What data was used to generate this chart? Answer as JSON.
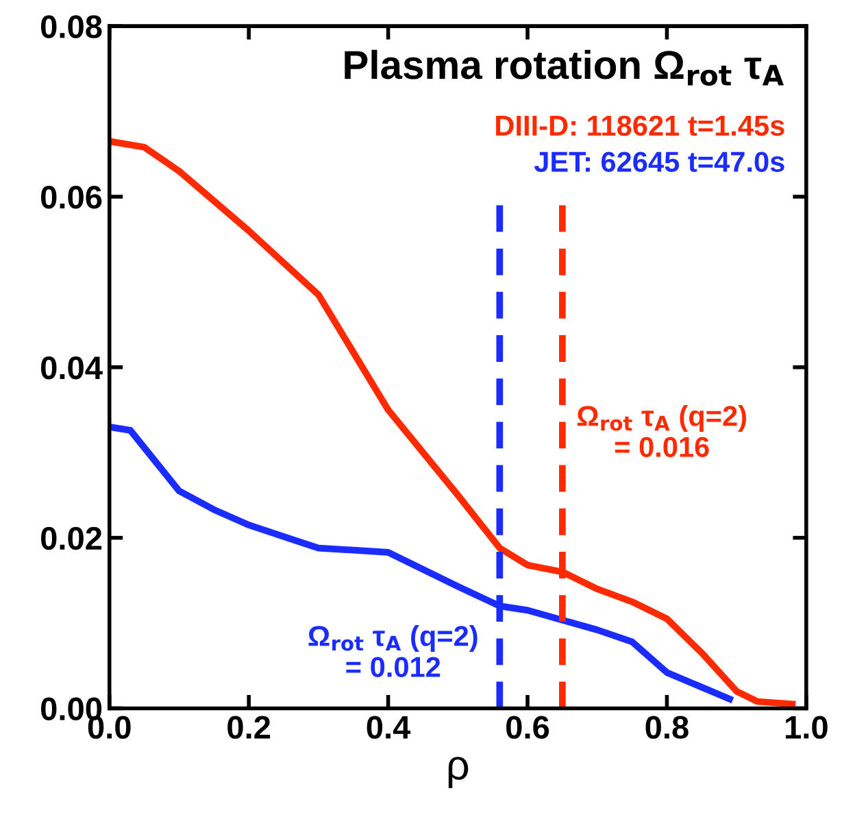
{
  "chart_data": {
    "type": "line",
    "title": "Plasma rotation Ω$_{rot}$ τ$_{A}$",
    "xlabel": "ρ",
    "xlim": [
      0,
      1
    ],
    "ylim": [
      0,
      0.08
    ],
    "xticks": [
      {
        "value": 0,
        "label": "0.0"
      },
      0.2,
      0.4,
      0.6,
      0.8,
      {
        "value": 1,
        "label": "1.0"
      }
    ],
    "yticks": [
      {
        "value": 0,
        "label": "0.00"
      },
      0.02,
      0.04,
      0.06,
      0.08
    ],
    "grid": false,
    "legend": "top right",
    "line_style": "solid",
    "marker": "none",
    "series": [
      {
        "name": "DIII-D: 118621 t=1.45s",
        "color": "#ff2a00",
        "x": [
          0,
          0.05,
          0.1,
          0.2,
          0.3,
          0.4,
          0.5,
          0.56,
          0.6,
          0.65,
          0.7,
          0.75,
          0.8,
          0.85,
          0.9,
          0.93,
          0.98
        ],
        "values": [
          0.0665,
          0.0658,
          0.063,
          0.056,
          0.0485,
          0.035,
          0.025,
          0.0188,
          0.0168,
          0.016,
          0.014,
          0.0125,
          0.0105,
          0.0065,
          0.002,
          0.0008,
          0.0005
        ]
      },
      {
        "name": "JET: 62645 t=47.0s",
        "color": "#1a2cff",
        "x": [
          0,
          0.03,
          0.1,
          0.15,
          0.2,
          0.27,
          0.3,
          0.4,
          0.5,
          0.56,
          0.6,
          0.7,
          0.75,
          0.8,
          0.89
        ],
        "values": [
          0.033,
          0.0326,
          0.0255,
          0.0233,
          0.0215,
          0.0196,
          0.0188,
          0.0183,
          0.0143,
          0.012,
          0.0115,
          0.0092,
          0.0078,
          0.0042,
          0.0011
        ]
      }
    ],
    "ref_lines": [
      {
        "axis": "x",
        "value": 0.56,
        "color": "#1a2cff",
        "line_style": "dashed"
      },
      {
        "axis": "x",
        "value": 0.65,
        "color": "#ff2a00",
        "line_style": "dashed"
      }
    ],
    "annotations": [
      {
        "text": "Ω$_{rot}$ τ$_{A}$ (q=2)\n= 0.012",
        "x": 0.56,
        "y": 0.012
      },
      "Ω$_{rot}$ τ$_{A}$ (q=2)\n= 0.016"
    ]
  }
}
